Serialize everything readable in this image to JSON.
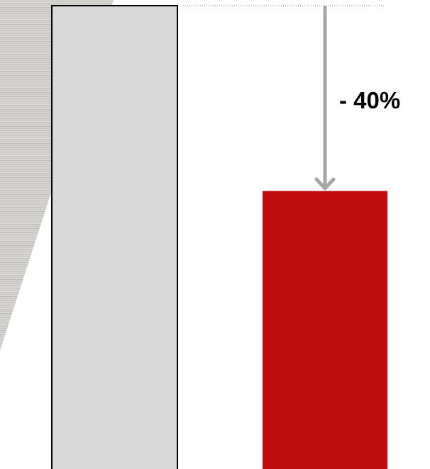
{
  "chart_data": {
    "type": "bar",
    "categories": [
      "",
      ""
    ],
    "values": [
      100,
      60
    ],
    "ylim": [
      0,
      100
    ],
    "grid": false,
    "annotation": {
      "text": "- 40%"
    },
    "colors": {
      "bar_0": "#d9d9d9",
      "bar_0_border": "#000000",
      "bar_1": "#c00d0d",
      "arrow": "#a6a6a6",
      "reference_line": "#7f7f7f",
      "label": "#000000",
      "texture_light": "#d4d3cf",
      "texture_dark": "#bdbcb7"
    }
  }
}
